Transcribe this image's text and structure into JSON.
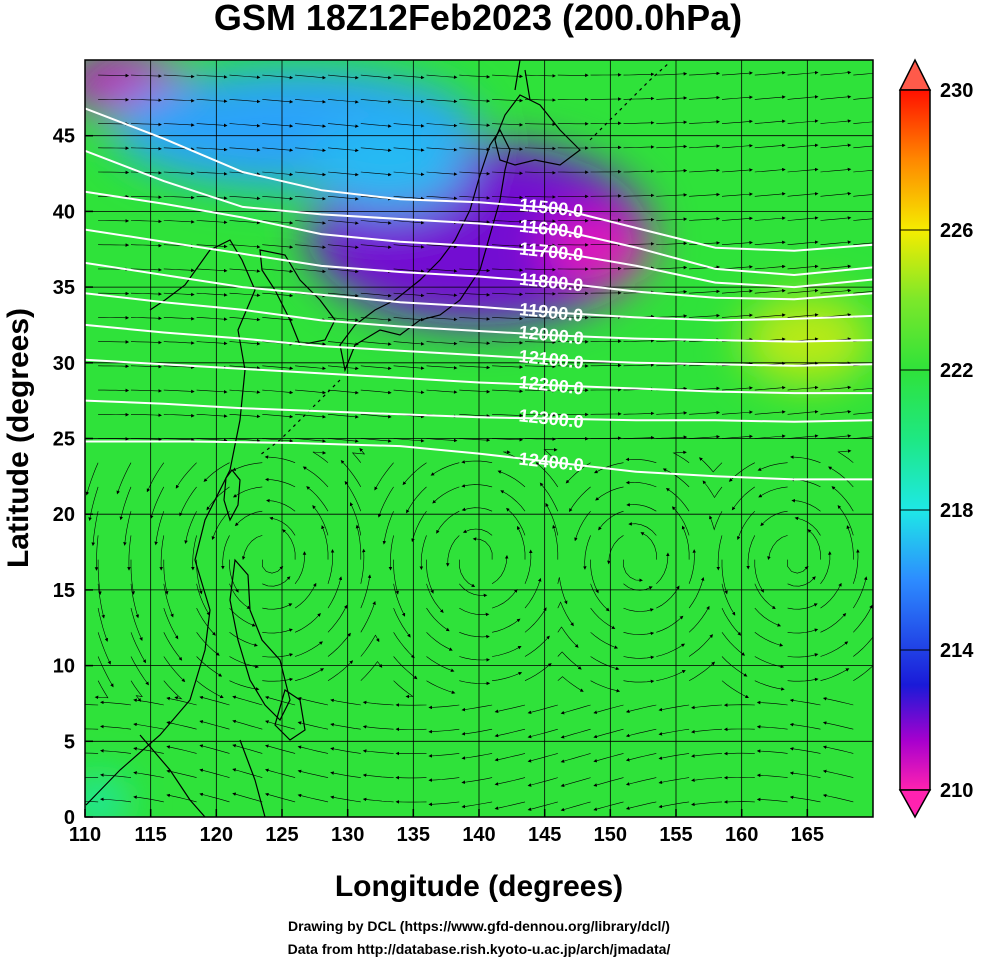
{
  "title": "GSM 18Z12Feb2023 (200.0hPa)",
  "xlabel": "Longitude (degrees)",
  "ylabel": "Latitude  (degrees)",
  "credits": {
    "drawing": "Drawing by DCL (https://www.gfd-dennou.org/library/dcl/)",
    "data": "Data from http://database.rish.kyoto-u.ac.jp/arch/jmadata/"
  },
  "colorbar": {
    "min": 210,
    "max": 230,
    "tick_labels": [
      "230",
      "226",
      "222",
      "218",
      "214",
      "210"
    ],
    "tick_values": [
      230,
      226,
      222,
      218,
      214,
      210
    ]
  },
  "chart_data": {
    "type": "heatmap",
    "description_fields": "temperature shading (K) with geopotential height contours (m) and wind streamlines",
    "xlim": [
      110,
      170
    ],
    "ylim": [
      0,
      50
    ],
    "x_ticks": [
      110,
      115,
      120,
      125,
      130,
      135,
      140,
      145,
      150,
      155,
      160,
      165
    ],
    "x_tick_labels": [
      "110",
      "115",
      "120",
      "125",
      "130",
      "135",
      "140",
      "145",
      "150",
      "155",
      "160",
      "165"
    ],
    "y_ticks": [
      0,
      5,
      10,
      15,
      20,
      25,
      30,
      35,
      40,
      45
    ],
    "y_tick_labels": [
      "0",
      "5",
      "10",
      "15",
      "20",
      "25",
      "30",
      "35",
      "40",
      "45"
    ],
    "grid": true,
    "contour_color": "#ffffff",
    "contours": [
      {
        "level": 11500,
        "label": "11500.0",
        "points": [
          [
            110,
            46.8
          ],
          [
            116,
            44.8
          ],
          [
            122,
            42.6
          ],
          [
            128,
            41.4
          ],
          [
            134,
            40.8
          ],
          [
            140,
            40.6
          ],
          [
            146,
            40.2
          ],
          [
            152,
            38.9
          ],
          [
            158,
            37.6
          ],
          [
            164,
            37.4
          ],
          [
            170,
            37.8
          ]
        ]
      },
      {
        "level": 11600,
        "label": "11600.0",
        "points": [
          [
            110,
            44.0
          ],
          [
            116,
            42.0
          ],
          [
            122,
            40.3
          ],
          [
            128,
            39.8
          ],
          [
            134,
            39.5
          ],
          [
            140,
            39.2
          ],
          [
            146,
            38.8
          ],
          [
            152,
            37.6
          ],
          [
            158,
            36.2
          ],
          [
            164,
            35.8
          ],
          [
            170,
            36.3
          ]
        ]
      },
      {
        "level": 11700,
        "label": "11700.0",
        "points": [
          [
            110,
            41.3
          ],
          [
            116,
            40.5
          ],
          [
            122,
            39.6
          ],
          [
            128,
            38.5
          ],
          [
            134,
            38.0
          ],
          [
            140,
            37.7
          ],
          [
            146,
            37.3
          ],
          [
            152,
            36.4
          ],
          [
            158,
            35.3
          ],
          [
            164,
            35.0
          ],
          [
            170,
            35.5
          ]
        ]
      },
      {
        "level": 11800,
        "label": "11800.0",
        "points": [
          [
            110,
            38.8
          ],
          [
            116,
            38.0
          ],
          [
            122,
            37.2
          ],
          [
            128,
            36.4
          ],
          [
            134,
            36.0
          ],
          [
            140,
            35.7
          ],
          [
            146,
            35.3
          ],
          [
            152,
            34.7
          ],
          [
            158,
            34.3
          ],
          [
            164,
            34.2
          ],
          [
            170,
            34.6
          ]
        ]
      },
      {
        "level": 11900,
        "label": "11900.0",
        "points": [
          [
            110,
            36.6
          ],
          [
            116,
            35.8
          ],
          [
            122,
            35.0
          ],
          [
            128,
            34.5
          ],
          [
            134,
            34.0
          ],
          [
            140,
            33.7
          ],
          [
            146,
            33.3
          ],
          [
            152,
            33.0
          ],
          [
            158,
            32.8
          ],
          [
            164,
            32.9
          ],
          [
            170,
            33.1
          ]
        ]
      },
      {
        "level": 12000,
        "label": "12000.0",
        "points": [
          [
            110,
            34.6
          ],
          [
            116,
            34.0
          ],
          [
            122,
            33.5
          ],
          [
            128,
            32.8
          ],
          [
            134,
            32.4
          ],
          [
            140,
            32.1
          ],
          [
            146,
            31.8
          ],
          [
            152,
            31.6
          ],
          [
            158,
            31.5
          ],
          [
            164,
            31.4
          ],
          [
            170,
            31.5
          ]
        ]
      },
      {
        "level": 12100,
        "label": "12100.0",
        "points": [
          [
            110,
            32.5
          ],
          [
            116,
            32.0
          ],
          [
            122,
            31.6
          ],
          [
            128,
            31.1
          ],
          [
            134,
            30.8
          ],
          [
            140,
            30.5
          ],
          [
            146,
            30.2
          ],
          [
            152,
            30.0
          ],
          [
            158,
            29.9
          ],
          [
            164,
            29.8
          ],
          [
            170,
            29.9
          ]
        ]
      },
      {
        "level": 12200,
        "label": "12200.0",
        "points": [
          [
            110,
            30.2
          ],
          [
            116,
            29.9
          ],
          [
            122,
            29.6
          ],
          [
            128,
            29.3
          ],
          [
            134,
            29.0
          ],
          [
            140,
            28.7
          ],
          [
            146,
            28.5
          ],
          [
            152,
            28.3
          ],
          [
            158,
            28.1
          ],
          [
            164,
            28.0
          ],
          [
            170,
            28.0
          ]
        ]
      },
      {
        "level": 12300,
        "label": "12300.0",
        "points": [
          [
            110,
            27.5
          ],
          [
            116,
            27.3
          ],
          [
            122,
            27.0
          ],
          [
            128,
            26.8
          ],
          [
            134,
            26.6
          ],
          [
            140,
            26.4
          ],
          [
            146,
            26.3
          ],
          [
            152,
            26.2
          ],
          [
            158,
            26.2
          ],
          [
            164,
            26.1
          ],
          [
            170,
            26.2
          ]
        ]
      },
      {
        "level": 12400,
        "label": "12400.0",
        "points": [
          [
            110,
            24.8
          ],
          [
            118,
            24.8
          ],
          [
            126,
            24.7
          ],
          [
            134,
            24.5
          ],
          [
            140,
            24.0
          ],
          [
            146,
            23.4
          ],
          [
            152,
            22.8
          ],
          [
            158,
            22.5
          ],
          [
            164,
            22.3
          ],
          [
            170,
            22.3
          ]
        ]
      }
    ],
    "temperature_anomalies": [
      {
        "lon": 140,
        "lat": 38.5,
        "value": 212,
        "rx": 13,
        "ry": 6
      },
      {
        "lon": 149,
        "lat": 37.5,
        "value": 210.5,
        "rx": 4,
        "ry": 2.5
      },
      {
        "lon": 113,
        "lat": 48.5,
        "value": 211,
        "rx": 5,
        "ry": 2
      },
      {
        "lon": 126,
        "lat": 45.5,
        "value": 216.5,
        "rx": 14,
        "ry": 4
      },
      {
        "lon": 133,
        "lat": 43,
        "value": 217,
        "rx": 6,
        "ry": 3
      },
      {
        "lon": 165,
        "lat": 31.5,
        "value": 225,
        "rx": 5,
        "ry": 3
      },
      {
        "lon": 111,
        "lat": 1,
        "value": 218.5,
        "rx": 2,
        "ry": 1.5
      }
    ],
    "background_value": 222
  }
}
